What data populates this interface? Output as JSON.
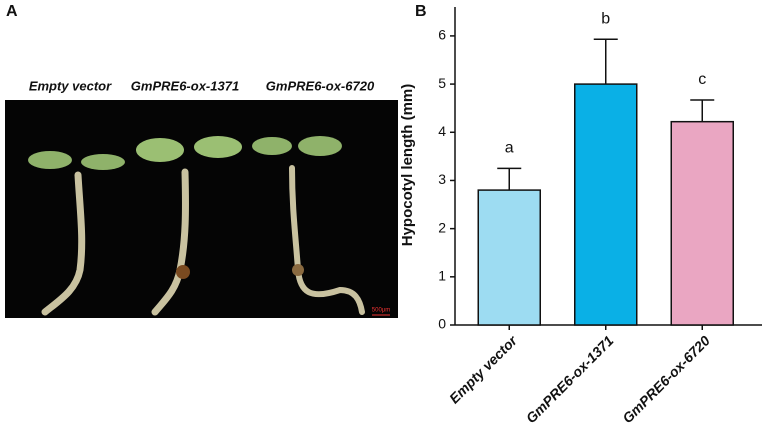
{
  "panel_a": {
    "label": "A",
    "captions": [
      "Empty vector",
      "GmPRE6-ox-1371",
      "GmPRE6-ox-6720"
    ],
    "scale_bar": "500μm"
  },
  "chart_data": {
    "type": "bar",
    "panel_label": "B",
    "y_label": "Hypocotyl length (mm)",
    "categories": [
      "Empty vector",
      "GmPRE6-ox-1371",
      "GmPRE6-ox-6720"
    ],
    "values": [
      2.8,
      5.0,
      4.22
    ],
    "errors": [
      0.45,
      0.93,
      0.45
    ],
    "annotations": [
      "a",
      "b",
      "c"
    ],
    "colors": [
      "#9ddcf2",
      "#0ab0e6",
      "#eaa6c2"
    ],
    "ylim": [
      0,
      6.6
    ],
    "yticks": [
      0,
      1,
      2,
      3,
      4,
      5,
      6
    ]
  }
}
